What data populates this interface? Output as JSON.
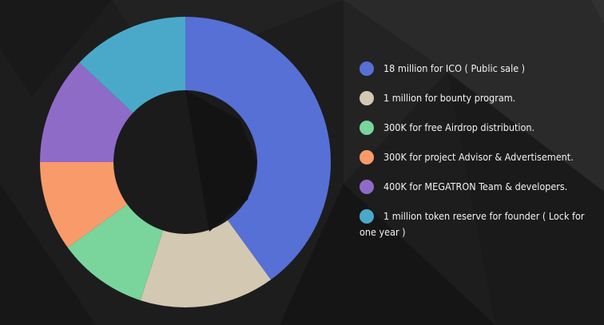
{
  "chart_data": {
    "type": "pie",
    "style": "donut",
    "legend_position": "right",
    "categories": [
      "18 million for ICO ( Public sale )",
      "1 million for bounty program.",
      "300K for free Airdrop distribution.",
      "300K for project Advisor & Advertisement.",
      "400K for MEGATRON Team & developers.",
      "1 million token reserve for founder ( Lock for one year )"
    ],
    "values": [
      40,
      15,
      10,
      10,
      12,
      13
    ],
    "colors": [
      "#5670d6",
      "#d3c8b2",
      "#79d59b",
      "#f99a6b",
      "#8f6bc8",
      "#4aa9c9"
    ]
  },
  "theme": {
    "background": "#1c1c1c",
    "hole": "#1b1b1b",
    "text": "#f2f2f2"
  }
}
